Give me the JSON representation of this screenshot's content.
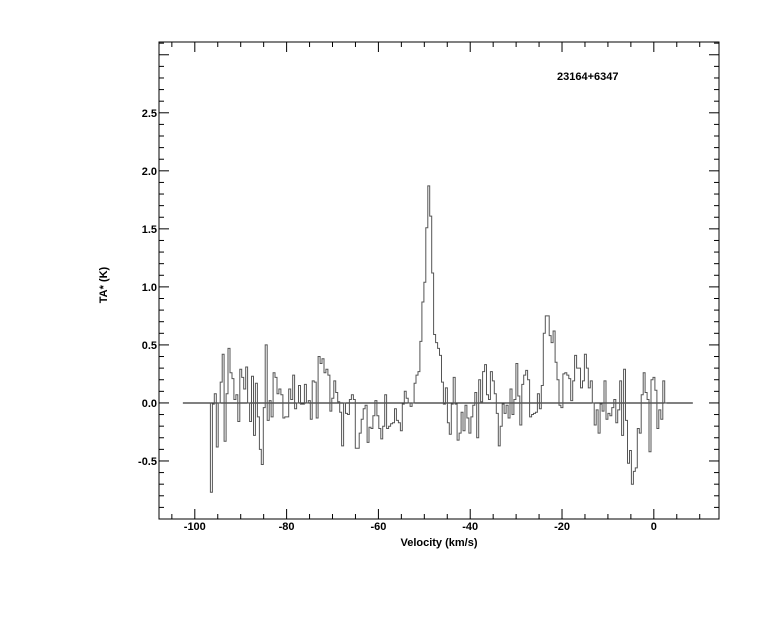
{
  "chart_data": {
    "type": "line",
    "style": "histogram-step",
    "annotation": "23164+6347",
    "xlabel": "Velocity (km/s)",
    "ylabel": "TA* (K)",
    "xlim": [
      -107.8,
      14.2
    ],
    "ylim": [
      -1.0,
      3.11
    ],
    "x_ticks": [
      -100,
      -80,
      -60,
      -40,
      -20,
      0
    ],
    "x_tick_labels": [
      "-100",
      "-80",
      "-60",
      "-40",
      "-20",
      "0"
    ],
    "y_ticks": [
      -0.5,
      0.0,
      0.5,
      1.0,
      1.5,
      2.0,
      2.5
    ],
    "y_tick_labels": [
      "-0.5",
      "0.0",
      "0.5",
      "1.0",
      "1.5",
      "2.0",
      "2.5"
    ],
    "baseline": {
      "y": 0.0,
      "x_range": [
        -102.6,
        8.5
      ]
    },
    "grid": false,
    "velocity_start": -96.6,
    "velocity_end": 2.8,
    "values": [
      -0.77,
      -0.01,
      0.08,
      -0.38,
      0.0,
      0.18,
      0.42,
      -0.33,
      0.08,
      0.47,
      0.26,
      0.21,
      0.03,
      0.07,
      -0.16,
      0.29,
      0.22,
      0.12,
      0.31,
      0.0,
      -0.16,
      0.23,
      -0.28,
      0.17,
      -0.12,
      -0.4,
      -0.53,
      -0.04,
      0.5,
      -0.15,
      0.02,
      -0.12,
      0.26,
      0.22,
      0.08,
      0.12,
      0.07,
      -0.13,
      -0.12,
      -0.12,
      0.12,
      0.03,
      0.24,
      -0.05,
      0.0,
      0.15,
      -0.01,
      -0.01,
      0.16,
      0.0,
      0.02,
      -0.14,
      0.19,
      0.18,
      -0.13,
      0.4,
      0.34,
      0.38,
      0.26,
      0.29,
      0.24,
      -0.07,
      0.04,
      0.19,
      0.09,
      0.01,
      -0.08,
      -0.37,
      0.0,
      -0.09,
      -0.1,
      0.03,
      0.07,
      0.03,
      -0.39,
      -0.39,
      -0.26,
      -0.14,
      -0.05,
      -0.02,
      -0.34,
      -0.21,
      -0.22,
      -0.11,
      0.02,
      -0.11,
      -0.22,
      -0.31,
      -0.2,
      0.07,
      -0.22,
      -0.2,
      -0.18,
      -0.17,
      -0.05,
      -0.15,
      -0.17,
      -0.24,
      -0.01,
      0.1,
      0.04,
      0.0,
      -0.03,
      0.0,
      0.17,
      0.24,
      0.27,
      0.53,
      0.87,
      1.04,
      1.51,
      1.87,
      1.61,
      1.12,
      0.59,
      0.52,
      0.47,
      0.41,
      0.18,
      -0.01,
      0.13,
      -0.17,
      -0.27,
      -0.01,
      0.22,
      -0.01,
      -0.32,
      -0.26,
      -0.08,
      -0.24,
      -0.02,
      -0.13,
      -0.26,
      -0.12,
      -0.02,
      0.09,
      -0.3,
      0.2,
      0.01,
      0.27,
      0.33,
      0.07,
      0.03,
      0.27,
      0.19,
      0.08,
      -0.09,
      -0.37,
      -0.2,
      -0.01,
      -0.09,
      -0.02,
      -0.13,
      0.12,
      -0.1,
      0.03,
      0.34,
      0.06,
      -0.19,
      0.16,
      0.24,
      0.28,
      0.2,
      -0.12,
      -0.1,
      -0.09,
      -0.08,
      0.08,
      -0.05,
      0.15,
      0.6,
      0.75,
      0.75,
      0.58,
      0.52,
      0.62,
      0.35,
      0.2,
      -0.02,
      -0.04,
      0.25,
      0.26,
      0.24,
      0.21,
      0.02,
      0.19,
      0.41,
      0.3,
      0.3,
      0.13,
      0.19,
      0.42,
      0.3,
      0.13,
      0.19,
      0.0,
      -0.19,
      -0.06,
      -0.26,
      -0.01,
      -0.07,
      0.19,
      -0.14,
      -0.09,
      -0.11,
      -0.04,
      0.03,
      -0.17,
      -0.06,
      0.19,
      -0.28,
      0.29,
      -0.15,
      -0.52,
      -0.41,
      -0.7,
      -0.59,
      -0.56,
      -0.22,
      -0.26,
      0.07,
      0.26,
      0.09,
      0.03,
      -0.42,
      0.2,
      0.22,
      0.11,
      -0.22,
      -0.06,
      -0.14,
      0.19,
      0.0
    ]
  }
}
